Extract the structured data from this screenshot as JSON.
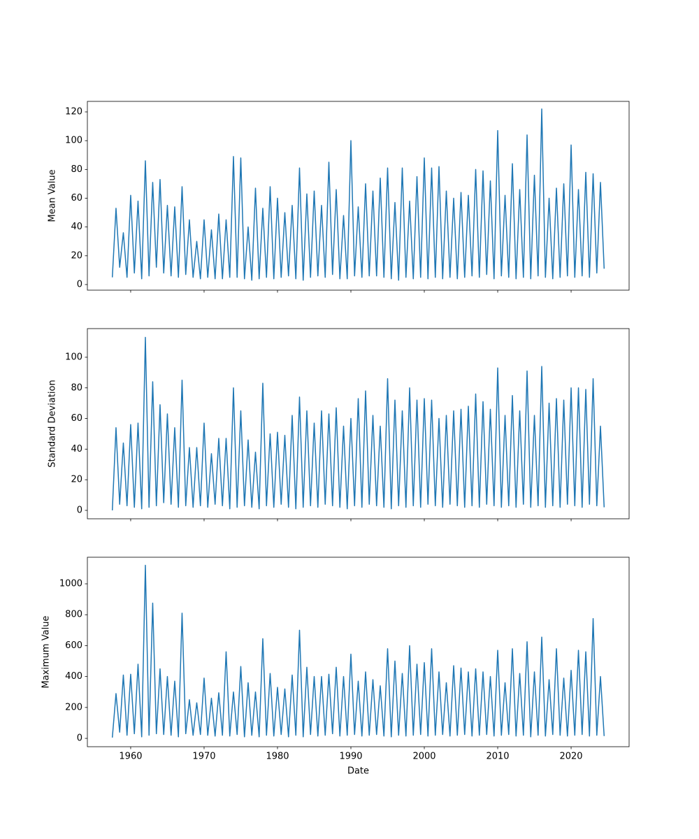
{
  "chart_data": [
    {
      "type": "line",
      "ylabel": "Mean Value",
      "color": "#1f77b4",
      "ylim": [
        -3.9,
        127.3
      ],
      "yticks": [
        0,
        20,
        40,
        60,
        80,
        100,
        120
      ],
      "x": [
        1957.5,
        1958,
        1958.5,
        1959,
        1959.5,
        1960,
        1960.5,
        1961,
        1961.5,
        1962,
        1962.5,
        1963,
        1963.5,
        1964,
        1964.5,
        1965,
        1965.5,
        1966,
        1966.5,
        1967,
        1967.5,
        1968,
        1968.5,
        1969,
        1969.5,
        1970,
        1970.5,
        1971,
        1971.5,
        1972,
        1972.5,
        1973,
        1973.5,
        1974,
        1974.5,
        1975,
        1975.5,
        1976,
        1976.5,
        1977,
        1977.5,
        1978,
        1978.5,
        1979,
        1979.5,
        1980,
        1980.5,
        1981,
        1981.5,
        1982,
        1982.5,
        1983,
        1983.5,
        1984,
        1984.5,
        1985,
        1985.5,
        1986,
        1986.5,
        1987,
        1987.5,
        1988,
        1988.5,
        1989,
        1989.5,
        1990,
        1990.5,
        1991,
        1991.5,
        1992,
        1992.5,
        1993,
        1993.5,
        1994,
        1994.5,
        1995,
        1995.5,
        1996,
        1996.5,
        1997,
        1997.5,
        1998,
        1998.5,
        1999,
        1999.5,
        2000,
        2000.5,
        2001,
        2001.5,
        2002,
        2002.5,
        2003,
        2003.5,
        2004,
        2004.5,
        2005,
        2005.5,
        2006,
        2006.5,
        2007,
        2007.5,
        2008,
        2008.5,
        2009,
        2009.5,
        2010,
        2010.5,
        2011,
        2011.5,
        2012,
        2012.5,
        2013,
        2013.5,
        2014,
        2014.5,
        2015,
        2015.5,
        2016,
        2016.5,
        2017,
        2017.5,
        2018,
        2018.5,
        2019,
        2019.5,
        2020,
        2020.5,
        2021,
        2021.5,
        2022,
        2022.5,
        2023,
        2023.5,
        2024,
        2024.5
      ],
      "values": [
        5,
        53,
        12,
        36,
        5,
        62,
        8,
        58,
        4,
        86,
        6,
        71,
        12,
        73,
        8,
        55,
        6,
        54,
        5,
        68,
        7,
        45,
        5,
        30,
        4,
        45,
        5,
        38,
        4,
        49,
        4,
        45,
        5,
        89,
        5,
        88,
        4,
        40,
        3,
        67,
        4,
        53,
        5,
        68,
        4,
        60,
        5,
        50,
        6,
        55,
        4,
        81,
        3,
        63,
        5,
        65,
        6,
        55,
        5,
        85,
        7,
        66,
        4,
        48,
        4,
        100,
        6,
        54,
        5,
        70,
        6,
        65,
        6,
        74,
        5,
        81,
        4,
        57,
        3,
        81,
        5,
        58,
        4,
        75,
        5,
        88,
        4,
        81,
        5,
        82,
        4,
        65,
        5,
        60,
        4,
        64,
        5,
        62,
        6,
        80,
        5,
        79,
        7,
        72,
        4,
        107,
        6,
        62,
        5,
        84,
        4,
        66,
        5,
        104,
        4,
        76,
        6,
        122,
        5,
        60,
        4,
        67,
        5,
        70,
        6,
        97,
        5,
        66,
        6,
        78,
        5,
        77,
        8,
        71,
        11
      ]
    },
    {
      "type": "line",
      "ylabel": "Standard Deviation",
      "color": "#1f77b4",
      "ylim": [
        -5.5,
        118.7
      ],
      "yticks": [
        0,
        20,
        40,
        60,
        80,
        100
      ],
      "x": [
        1957.5,
        1958,
        1958.5,
        1959,
        1959.5,
        1960,
        1960.5,
        1961,
        1961.5,
        1962,
        1962.5,
        1963,
        1963.5,
        1964,
        1964.5,
        1965,
        1965.5,
        1966,
        1966.5,
        1967,
        1967.5,
        1968,
        1968.5,
        1969,
        1969.5,
        1970,
        1970.5,
        1971,
        1971.5,
        1972,
        1972.5,
        1973,
        1973.5,
        1974,
        1974.5,
        1975,
        1975.5,
        1976,
        1976.5,
        1977,
        1977.5,
        1978,
        1978.5,
        1979,
        1979.5,
        1980,
        1980.5,
        1981,
        1981.5,
        1982,
        1982.5,
        1983,
        1983.5,
        1984,
        1984.5,
        1985,
        1985.5,
        1986,
        1986.5,
        1987,
        1987.5,
        1988,
        1988.5,
        1989,
        1989.5,
        1990,
        1990.5,
        1991,
        1991.5,
        1992,
        1992.5,
        1993,
        1993.5,
        1994,
        1994.5,
        1995,
        1995.5,
        1996,
        1996.5,
        1997,
        1997.5,
        1998,
        1998.5,
        1999,
        1999.5,
        2000,
        2000.5,
        2001,
        2001.5,
        2002,
        2002.5,
        2003,
        2003.5,
        2004,
        2004.5,
        2005,
        2005.5,
        2006,
        2006.5,
        2007,
        2007.5,
        2008,
        2008.5,
        2009,
        2009.5,
        2010,
        2010.5,
        2011,
        2011.5,
        2012,
        2012.5,
        2013,
        2013.5,
        2014,
        2014.5,
        2015,
        2015.5,
        2016,
        2016.5,
        2017,
        2017.5,
        2018,
        2018.5,
        2019,
        2019.5,
        2020,
        2020.5,
        2021,
        2021.5,
        2022,
        2022.5,
        2023,
        2023.5,
        2024,
        2024.5
      ],
      "values": [
        0,
        54,
        4,
        44,
        3,
        56,
        2,
        57,
        1,
        113,
        2,
        84,
        3,
        69,
        5,
        63,
        4,
        54,
        2,
        85,
        3,
        41,
        2,
        41,
        3,
        57,
        2,
        37,
        4,
        47,
        3,
        47,
        1,
        80,
        2,
        65,
        3,
        46,
        2,
        38,
        1,
        83,
        3,
        50,
        2,
        51,
        4,
        49,
        2,
        62,
        1,
        74,
        2,
        65,
        3,
        57,
        2,
        65,
        4,
        63,
        3,
        67,
        2,
        55,
        1,
        60,
        3,
        73,
        2,
        78,
        4,
        62,
        3,
        55,
        2,
        86,
        1,
        72,
        3,
        65,
        2,
        80,
        3,
        72,
        2,
        73,
        4,
        72,
        3,
        60,
        2,
        62,
        4,
        65,
        3,
        66,
        2,
        68,
        3,
        76,
        2,
        71,
        4,
        66,
        3,
        93,
        2,
        62,
        3,
        75,
        2,
        65,
        4,
        91,
        2,
        62,
        3,
        94,
        2,
        70,
        3,
        73,
        2,
        72,
        4,
        80,
        3,
        80,
        2,
        79,
        4,
        86,
        3,
        55,
        2
      ]
    },
    {
      "type": "line",
      "ylabel": "Maximum Value",
      "xlabel": "Date",
      "color": "#1f77b4",
      "xlim": [
        1954.1,
        2027.9
      ],
      "xticks": [
        1960,
        1970,
        1980,
        1990,
        2000,
        2010,
        2020
      ],
      "ylim": [
        -54,
        1172
      ],
      "yticks": [
        0,
        200,
        400,
        600,
        800,
        1000
      ],
      "x": [
        1957.5,
        1958,
        1958.5,
        1959,
        1959.5,
        1960,
        1960.5,
        1961,
        1961.5,
        1962,
        1962.5,
        1963,
        1963.5,
        1964,
        1964.5,
        1965,
        1965.5,
        1966,
        1966.5,
        1967,
        1967.5,
        1968,
        1968.5,
        1969,
        1969.5,
        1970,
        1970.5,
        1971,
        1971.5,
        1972,
        1972.5,
        1973,
        1973.5,
        1974,
        1974.5,
        1975,
        1975.5,
        1976,
        1976.5,
        1977,
        1977.5,
        1978,
        1978.5,
        1979,
        1979.5,
        1980,
        1980.5,
        1981,
        1981.5,
        1982,
        1982.5,
        1983,
        1983.5,
        1984,
        1984.5,
        1985,
        1985.5,
        1986,
        1986.5,
        1987,
        1987.5,
        1988,
        1988.5,
        1989,
        1989.5,
        1990,
        1990.5,
        1991,
        1991.5,
        1992,
        1992.5,
        1993,
        1993.5,
        1994,
        1994.5,
        1995,
        1995.5,
        1996,
        1996.5,
        1997,
        1997.5,
        1998,
        1998.5,
        1999,
        1999.5,
        2000,
        2000.5,
        2001,
        2001.5,
        2002,
        2002.5,
        2003,
        2003.5,
        2004,
        2004.5,
        2005,
        2005.5,
        2006,
        2006.5,
        2007,
        2007.5,
        2008,
        2008.5,
        2009,
        2009.5,
        2010,
        2010.5,
        2011,
        2011.5,
        2012,
        2012.5,
        2013,
        2013.5,
        2014,
        2014.5,
        2015,
        2015.5,
        2016,
        2016.5,
        2017,
        2017.5,
        2018,
        2018.5,
        2019,
        2019.5,
        2020,
        2020.5,
        2021,
        2021.5,
        2022,
        2022.5,
        2023,
        2023.5,
        2024,
        2024.5
      ],
      "values": [
        5,
        290,
        40,
        410,
        20,
        415,
        30,
        480,
        10,
        1120,
        20,
        875,
        30,
        450,
        25,
        400,
        20,
        370,
        10,
        810,
        30,
        250,
        20,
        230,
        25,
        390,
        20,
        260,
        15,
        295,
        20,
        560,
        15,
        300,
        25,
        465,
        10,
        360,
        20,
        300,
        10,
        645,
        20,
        420,
        15,
        330,
        25,
        320,
        10,
        410,
        20,
        700,
        10,
        460,
        25,
        400,
        15,
        400,
        20,
        415,
        30,
        460,
        15,
        400,
        20,
        545,
        25,
        370,
        15,
        430,
        20,
        380,
        25,
        340,
        15,
        580,
        10,
        500,
        20,
        420,
        15,
        600,
        20,
        480,
        25,
        490,
        15,
        580,
        20,
        430,
        25,
        360,
        15,
        470,
        20,
        455,
        25,
        430,
        15,
        450,
        20,
        430,
        25,
        400,
        15,
        570,
        20,
        360,
        25,
        580,
        15,
        420,
        20,
        625,
        10,
        430,
        20,
        655,
        15,
        380,
        25,
        580,
        20,
        390,
        15,
        440,
        20,
        570,
        25,
        560,
        15,
        775,
        20,
        400,
        15
      ]
    }
  ]
}
